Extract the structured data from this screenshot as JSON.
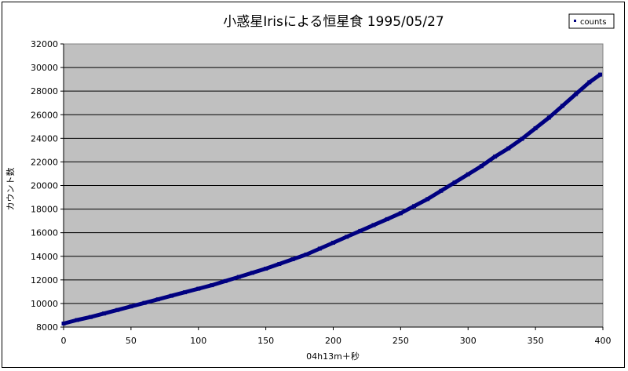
{
  "chart_data": {
    "type": "scatter",
    "title": "小惑星Irisによる恒星食 1995/05/27",
    "xlabel": "04h13m＋秒",
    "ylabel": "カウント数",
    "xlim": [
      0,
      400
    ],
    "ylim": [
      8000,
      32000
    ],
    "x_ticks": [
      0,
      50,
      100,
      150,
      200,
      250,
      300,
      350,
      400
    ],
    "y_ticks": [
      8000,
      10000,
      12000,
      14000,
      16000,
      18000,
      20000,
      22000,
      24000,
      26000,
      28000,
      30000,
      32000
    ],
    "grid": "horizontal",
    "legend_position": "top-right",
    "colors": {
      "plot_bg": "#c0c0c0",
      "marker": "#000080",
      "grid": "#000000"
    },
    "series": [
      {
        "name": "counts",
        "x": [
          0,
          10,
          20,
          30,
          40,
          50,
          60,
          70,
          80,
          90,
          100,
          110,
          120,
          130,
          140,
          150,
          160,
          170,
          180,
          190,
          200,
          210,
          220,
          230,
          240,
          250,
          260,
          270,
          280,
          290,
          300,
          310,
          320,
          330,
          340,
          350,
          360,
          370,
          380,
          390,
          398
        ],
        "y": [
          8300,
          8600,
          8850,
          9150,
          9450,
          9750,
          10050,
          10350,
          10650,
          10950,
          11250,
          11550,
          11900,
          12250,
          12600,
          12950,
          13350,
          13750,
          14150,
          14650,
          15150,
          15650,
          16150,
          16650,
          17150,
          17650,
          18250,
          18850,
          19550,
          20250,
          20950,
          21650,
          22450,
          23150,
          23950,
          24850,
          25750,
          26750,
          27750,
          28750,
          29400
        ]
      }
    ]
  }
}
